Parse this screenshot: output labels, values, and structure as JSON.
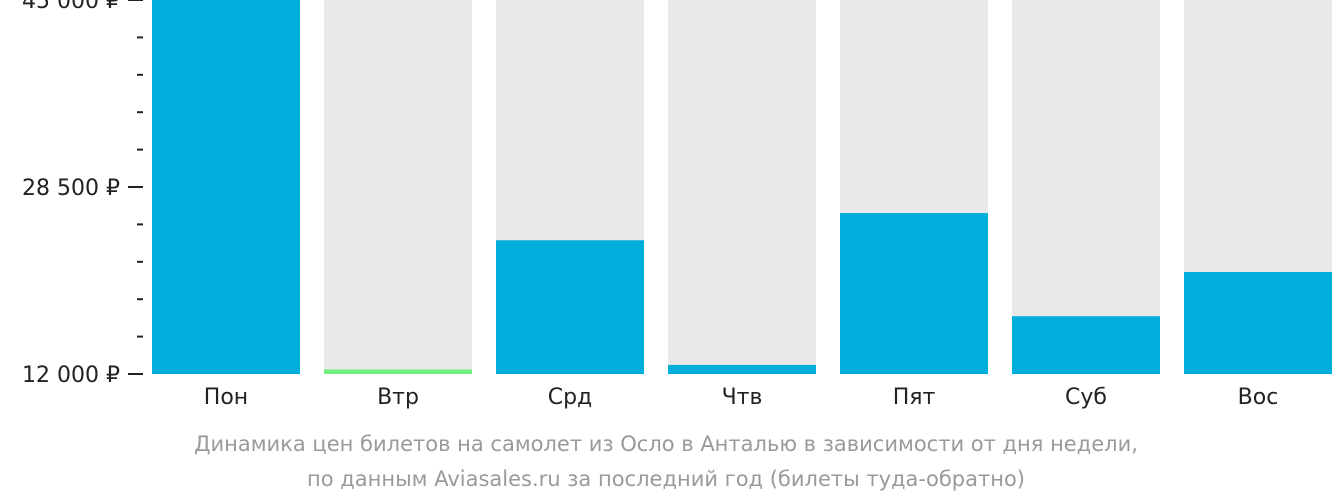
{
  "chart_data": {
    "type": "bar",
    "categories": [
      "Пон",
      "Втр",
      "Срд",
      "Чтв",
      "Пят",
      "Суб",
      "Вос"
    ],
    "values": [
      45000,
      12400,
      23800,
      12800,
      26200,
      17100,
      21000
    ],
    "highlight_index": 1,
    "ylim": [
      12000,
      45000
    ],
    "yticks": [
      {
        "value": 45000,
        "label": "45 000 ₽"
      },
      {
        "value": 28500,
        "label": "28 500 ₽"
      },
      {
        "value": 12000,
        "label": "12 000 ₽"
      }
    ],
    "minor_ticks_between": 4,
    "colors": {
      "bar": "#00aedc",
      "highlight": "#72f07e",
      "background_bar": "#e8e8e8",
      "text": "#222222",
      "caption": "#9a9a9a"
    },
    "caption": [
      "Динамика цен билетов на самолет из Осло в Анталью в зависимости от дня недели,",
      "по данным Aviasales.ru за последний год (билеты туда-обратно)"
    ]
  }
}
